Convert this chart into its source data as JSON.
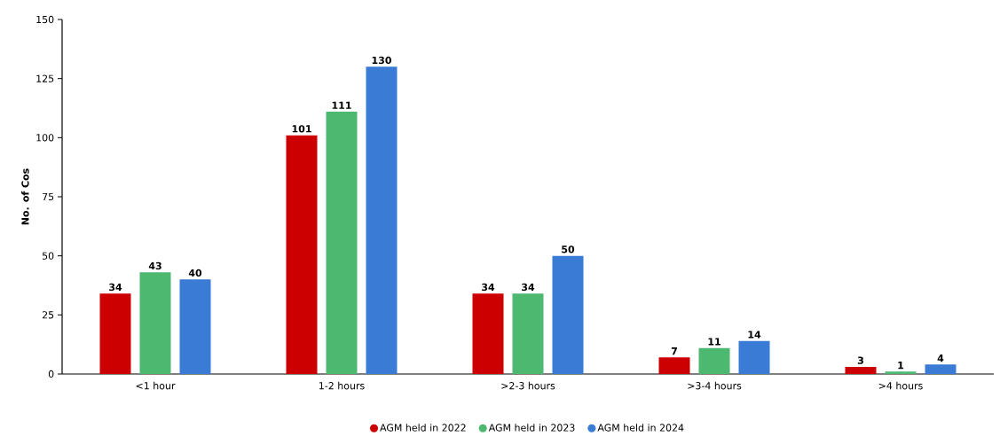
{
  "chart_data": {
    "type": "bar",
    "ylabel": "No. of Cos",
    "categories": [
      "<1 hour",
      "1-2 hours",
      ">2-3 hours",
      ">3-4 hours",
      ">4 hours"
    ],
    "series": [
      {
        "name": "AGM held in 2022",
        "color": "#cc0000",
        "values": [
          34,
          101,
          34,
          7,
          3
        ]
      },
      {
        "name": "AGM held in 2023",
        "color": "#4cb870",
        "values": [
          43,
          111,
          34,
          11,
          1
        ]
      },
      {
        "name": "AGM held in 2024",
        "color": "#3a7bd5",
        "values": [
          40,
          130,
          50,
          14,
          4
        ]
      }
    ],
    "ylim": [
      0,
      150
    ],
    "yticks": [
      0,
      25,
      50,
      75,
      100,
      125,
      150
    ],
    "data_labels": true,
    "grid": false,
    "legend": "bottom"
  }
}
